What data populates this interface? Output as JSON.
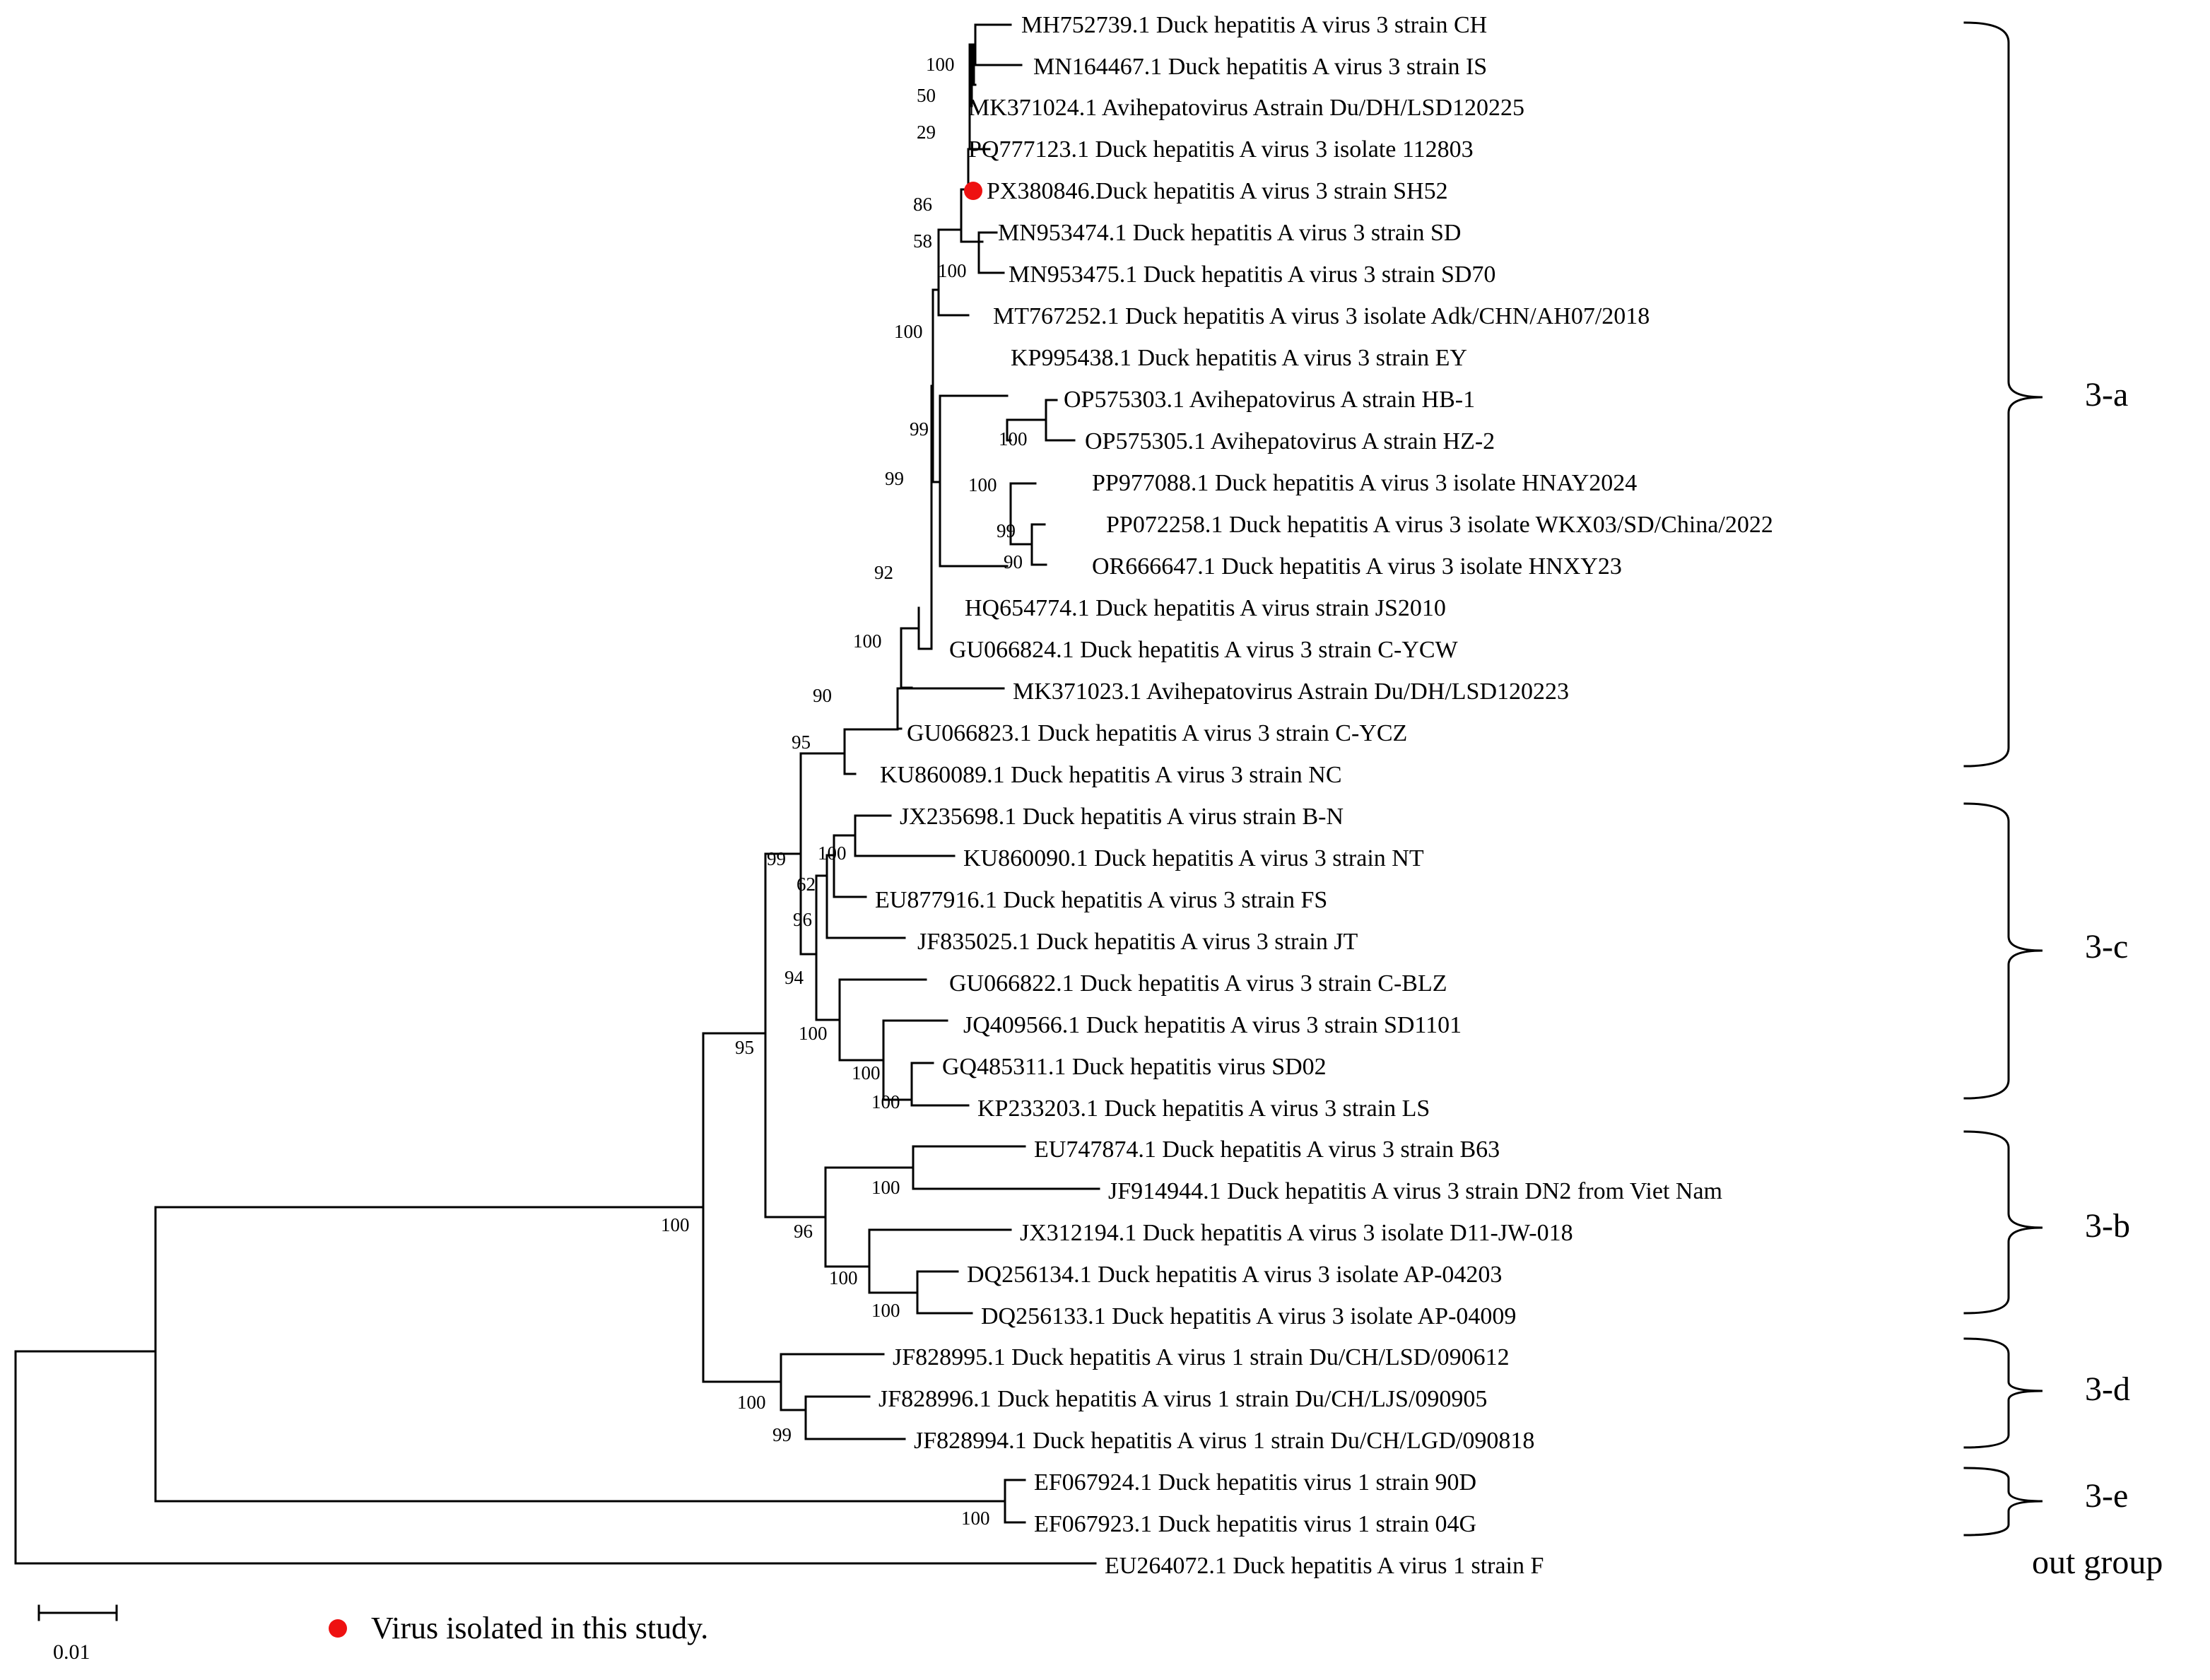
{
  "tree": {
    "marker_color": "#ee1111",
    "leaves": [
      "MH752739.1 Duck hepatitis A virus 3 strain CH",
      "MN164467.1 Duck hepatitis A virus 3 strain IS",
      "MK371024.1 Avihepatovirus Astrain Du/DH/LSD120225",
      "PQ777123.1 Duck hepatitis A virus 3 isolate 112803",
      "PX380846.Duck hepatitis A virus 3 strain SH52",
      "MN953474.1 Duck hepatitis A virus 3 strain SD",
      "MN953475.1 Duck hepatitis A virus 3 strain SD70",
      "MT767252.1 Duck hepatitis A virus 3 isolate Adk/CHN/AH07/2018",
      "KP995438.1 Duck hepatitis A virus 3 strain EY",
      "OP575303.1 Avihepatovirus A strain HB-1",
      "OP575305.1 Avihepatovirus A strain HZ-2",
      "PP977088.1 Duck hepatitis A virus 3 isolate HNAY2024",
      "PP072258.1 Duck hepatitis A virus 3 isolate WKX03/SD/China/2022",
      "OR666647.1 Duck hepatitis A virus 3 isolate HNXY23",
      "HQ654774.1 Duck hepatitis A virus strain JS2010",
      "GU066824.1 Duck hepatitis A virus 3 strain C-YCW",
      "MK371023.1 Avihepatovirus Astrain Du/DH/LSD120223",
      "GU066823.1 Duck hepatitis A virus 3 strain C-YCZ",
      "KU860089.1 Duck hepatitis A virus 3 strain NC",
      "JX235698.1 Duck hepatitis A virus strain B-N",
      "KU860090.1 Duck hepatitis A virus 3 strain NT",
      "EU877916.1 Duck hepatitis A virus 3 strain FS",
      "JF835025.1 Duck hepatitis A virus 3 strain JT",
      "GU066822.1 Duck hepatitis A virus 3 strain C-BLZ",
      "JQ409566.1 Duck hepatitis A virus 3 strain SD1101",
      "GQ485311.1 Duck hepatitis virus SD02",
      "KP233203.1 Duck hepatitis A virus 3 strain LS",
      "EU747874.1 Duck hepatitis A virus 3 strain B63",
      "JF914944.1 Duck hepatitis A virus 3 strain DN2 from Viet Nam",
      "JX312194.1 Duck hepatitis A virus 3 isolate D11-JW-018",
      "DQ256134.1 Duck hepatitis A virus 3 isolate AP-04203",
      "DQ256133.1 Duck hepatitis A virus 3 isolate AP-04009",
      "JF828995.1 Duck hepatitis A virus 1 strain Du/CH/LSD/090612",
      "JF828996.1 Duck hepatitis A virus 1 strain Du/CH/LJS/090905",
      "JF828994.1 Duck hepatitis A virus 1 strain Du/CH/LGD/090818",
      "EF067924.1 Duck hepatitis virus 1 strain 90D",
      "EF067923.1 Duck hepatitis virus 1 strain 04G",
      "EU264072.1 Duck hepatitis A virus 1 strain F"
    ],
    "bootstrap_values": [
      "100",
      "50",
      "29",
      "86",
      "58",
      "100",
      "100",
      "99",
      "100",
      "100",
      "99",
      "90",
      "99",
      "92",
      "100",
      "90",
      "95",
      "100",
      "62",
      "96",
      "94",
      "100",
      "100",
      "100",
      "99",
      "95",
      "100",
      "96",
      "100",
      "100",
      "100",
      "99",
      "100",
      "100"
    ],
    "clades": [
      "3-a",
      "3-c",
      "3-b",
      "3-d",
      "3-e",
      "out group"
    ],
    "legend_text": "Virus isolated in this study.",
    "scale_label": "0.01"
  }
}
